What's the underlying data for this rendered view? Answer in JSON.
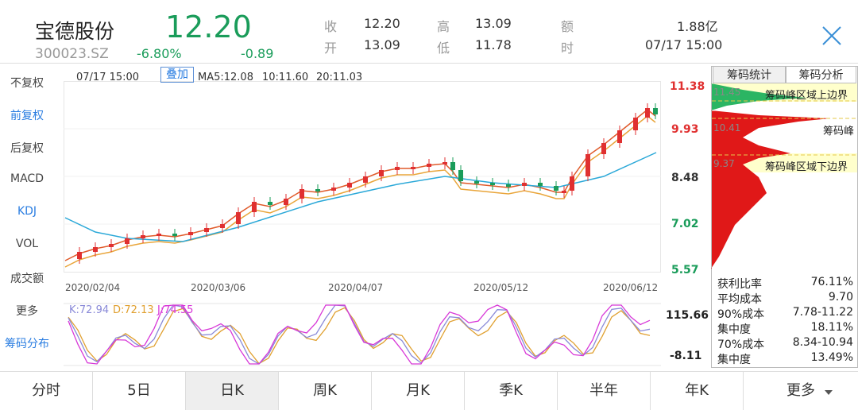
{
  "stock": {
    "name": "宝德股份",
    "code": "300023.SZ",
    "price": "12.20",
    "change_pct": "-6.80%",
    "change_amt": "-0.89",
    "color_down": "#1a9c5a",
    "color_up": "#e03030"
  },
  "quote": {
    "close_label": "收",
    "close_value": "12.20",
    "open_label": "开",
    "open_value": "13.09",
    "high_label": "高",
    "high_value": "13.09",
    "low_label": "低",
    "low_value": "11.78",
    "amount_label": "额",
    "amount_value": "1.88亿",
    "time_label": "时",
    "time_value": "07/17 15:00"
  },
  "left_menu": [
    {
      "label": "不复权",
      "active": false
    },
    {
      "label": "前复权",
      "active": true
    },
    {
      "label": "后复权",
      "active": false
    },
    {
      "label": "MACD",
      "active": false
    },
    {
      "label": "KDJ",
      "active": true
    },
    {
      "label": "VOL",
      "active": false
    },
    {
      "label": "成交额",
      "active": false
    },
    {
      "label": "更多",
      "active": false
    },
    {
      "label": "筹码分布",
      "active": true
    }
  ],
  "kline": {
    "datetime": "07/17 15:00",
    "overlay_label": "叠加",
    "ma5_label": "MA5:12.08",
    "ma10_label": "10:11.60",
    "ma20_label": "20:11.03",
    "price_axis": [
      "11.38",
      "9.93",
      "8.48",
      "7.02",
      "5.57"
    ],
    "date_axis": [
      "2020/02/04",
      "2020/03/06",
      "2020/04/07",
      "2020/05/12",
      "2020/06/12"
    ],
    "ma_colors": {
      "ma5": "#e05a2a",
      "ma10": "#e9a53a",
      "ma20": "#2aa8d8"
    }
  },
  "kdj": {
    "k_label": "K:72.94",
    "d_label": "D:72.13",
    "j_label": "J:74.55",
    "axis_top": "115.66",
    "axis_bottom": "-8.11",
    "colors": {
      "k": "#8a8ad8",
      "d": "#e0a030",
      "j": "#d838d8"
    }
  },
  "chip": {
    "tab_stats": "筹码统计",
    "tab_analysis": "筹码分析",
    "price_upper": "11.45",
    "price_peak": "10.41",
    "price_lower": "9.37",
    "note_upper": "筹码峰区域上边界",
    "note_peak": "筹码峰",
    "note_lower": "筹码峰区域下边界",
    "stats": [
      {
        "label": "获利比率",
        "value": "76.11%"
      },
      {
        "label": "平均成本",
        "value": "9.70"
      },
      {
        "label": "90%成本",
        "value": "7.78-11.22"
      },
      {
        "label": "集中度",
        "value": "18.11%"
      },
      {
        "label": "70%成本",
        "value": "8.34-10.94"
      },
      {
        "label": "集中度",
        "value": "13.49%"
      }
    ]
  },
  "bottom_tabs": [
    {
      "label": "分时",
      "active": false
    },
    {
      "label": "5日",
      "active": false
    },
    {
      "label": "日K",
      "active": true
    },
    {
      "label": "周K",
      "active": false
    },
    {
      "label": "月K",
      "active": false
    },
    {
      "label": "季K",
      "active": false
    },
    {
      "label": "半年",
      "active": false
    },
    {
      "label": "年K",
      "active": false
    },
    {
      "label": "更多",
      "active": false
    }
  ]
}
